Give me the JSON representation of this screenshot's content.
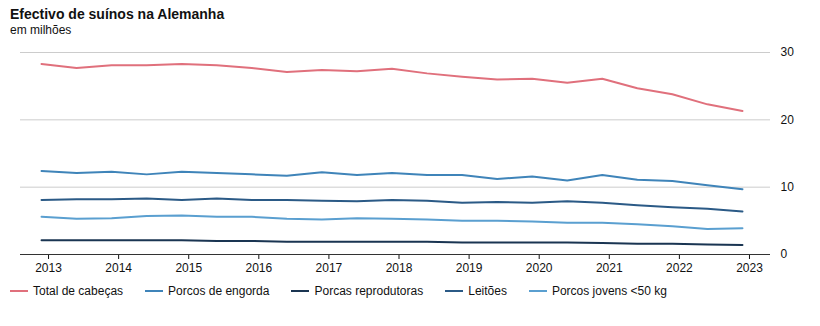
{
  "chart_data": {
    "type": "line",
    "title": "Efectivo de suínos na Alemanha",
    "subtitle": "em milhões",
    "x": [
      2012.9,
      2013.4,
      2013.9,
      2014.4,
      2014.9,
      2015.4,
      2015.9,
      2016.4,
      2016.9,
      2017.4,
      2017.9,
      2018.4,
      2018.9,
      2019.4,
      2019.9,
      2020.4,
      2020.9,
      2021.4,
      2021.9,
      2022.4,
      2022.9
    ],
    "series": [
      {
        "name": "Total de cabeças",
        "color": "#e0707c",
        "values": [
          28.3,
          27.7,
          28.1,
          28.1,
          28.3,
          28.1,
          27.7,
          27.1,
          27.4,
          27.2,
          27.6,
          26.9,
          26.4,
          26.0,
          26.1,
          25.5,
          26.1,
          24.7,
          23.8,
          22.3,
          21.3
        ]
      },
      {
        "name": "Porcos de engorda",
        "color": "#3f84b9",
        "values": [
          12.4,
          12.1,
          12.3,
          11.9,
          12.3,
          12.1,
          11.9,
          11.7,
          12.2,
          11.8,
          12.1,
          11.8,
          11.8,
          11.2,
          11.6,
          11.0,
          11.8,
          11.1,
          10.9,
          10.3,
          9.7
        ]
      },
      {
        "name": "Porcas reprodutoras",
        "color": "#1a3552",
        "values": [
          2.1,
          2.1,
          2.1,
          2.1,
          2.1,
          2.0,
          2.0,
          1.9,
          1.9,
          1.9,
          1.9,
          1.9,
          1.8,
          1.8,
          1.8,
          1.8,
          1.7,
          1.6,
          1.6,
          1.5,
          1.4
        ]
      },
      {
        "name": "Leitões",
        "color": "#2b5a86",
        "values": [
          8.1,
          8.2,
          8.2,
          8.3,
          8.1,
          8.3,
          8.1,
          8.1,
          8.0,
          7.9,
          8.1,
          8.0,
          7.7,
          7.8,
          7.7,
          7.9,
          7.7,
          7.3,
          7.0,
          6.8,
          6.4
        ]
      },
      {
        "name": "Porcos jovens <50 kg",
        "color": "#5a9fd0",
        "values": [
          5.6,
          5.3,
          5.4,
          5.7,
          5.8,
          5.6,
          5.6,
          5.3,
          5.2,
          5.4,
          5.3,
          5.2,
          5.0,
          5.0,
          4.9,
          4.7,
          4.7,
          4.5,
          4.2,
          3.8,
          3.9
        ]
      }
    ],
    "xlim": [
      2012.6,
      2023.3
    ],
    "xticks": [
      2013,
      2014,
      2015,
      2016,
      2017,
      2018,
      2019,
      2020,
      2021,
      2022,
      2023
    ],
    "ylim": [
      0,
      30
    ],
    "yticks": [
      0,
      10,
      20,
      30
    ],
    "grid": true
  }
}
